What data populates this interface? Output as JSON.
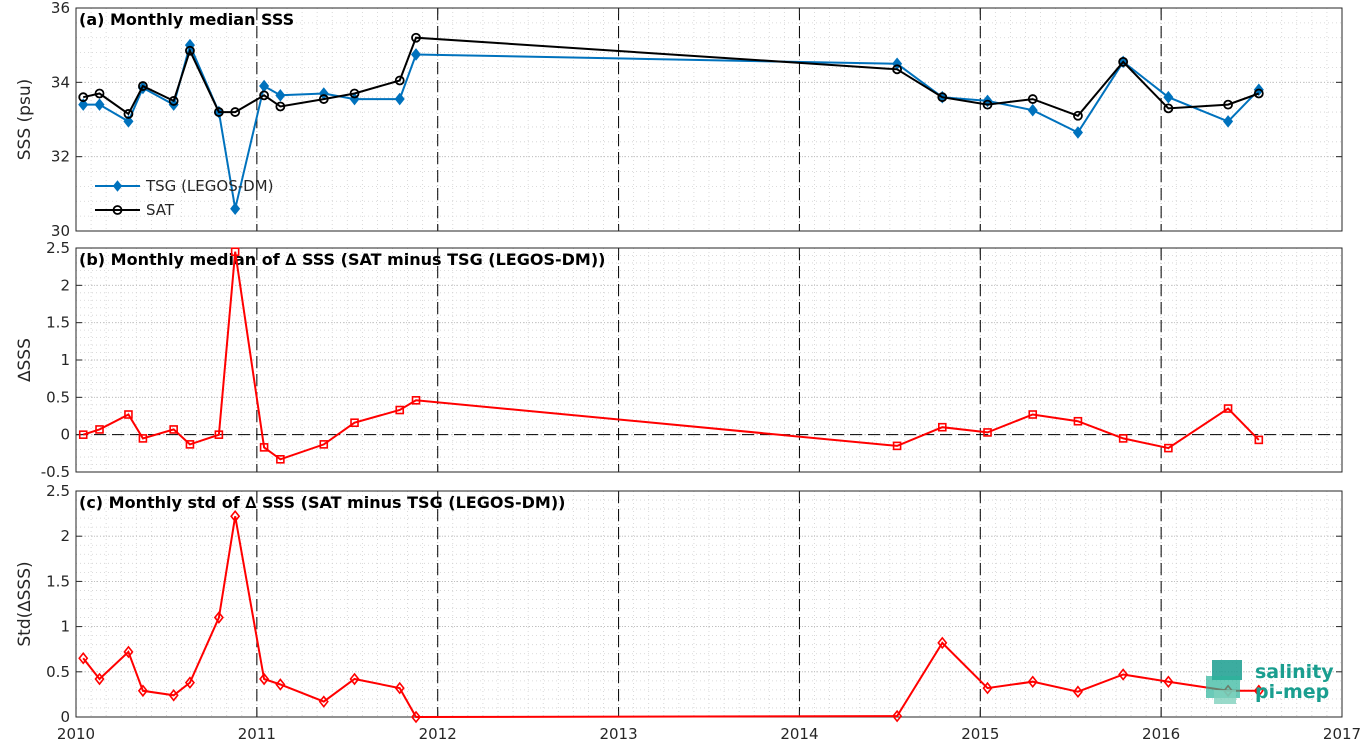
{
  "chart_data": [
    {
      "type": "line",
      "title": "(a) Monthly median SSS",
      "xlabel": "",
      "ylabel": "SSS (psu)",
      "xlim": [
        2010,
        2017
      ],
      "ylim": [
        30,
        36
      ],
      "yticks": [
        30,
        32,
        34,
        36
      ],
      "legend": "bottom-left",
      "grid": true,
      "series": [
        {
          "name": "TSG (LEGOS-DM)",
          "color": "#0072BD",
          "marker": "diamond",
          "x": [
            2010.04,
            2010.13,
            2010.29,
            2010.37,
            2010.54,
            2010.63,
            2010.79,
            2010.88,
            2011.04,
            2011.13,
            2011.37,
            2011.54,
            2011.79,
            2011.88,
            2014.54,
            2014.79,
            2015.04,
            2015.29,
            2015.54,
            2015.79,
            2016.04,
            2016.37,
            2016.54
          ],
          "y": [
            33.4,
            33.4,
            32.95,
            33.85,
            33.4,
            35.0,
            33.2,
            30.6,
            33.9,
            33.65,
            33.7,
            33.55,
            33.55,
            34.75,
            34.5,
            33.6,
            33.5,
            33.25,
            32.65,
            34.55,
            33.6,
            32.95,
            33.8
          ]
        },
        {
          "name": "SAT",
          "color": "#000000",
          "marker": "circle",
          "x": [
            2010.04,
            2010.13,
            2010.29,
            2010.37,
            2010.54,
            2010.63,
            2010.79,
            2010.88,
            2011.04,
            2011.13,
            2011.37,
            2011.54,
            2011.79,
            2011.88,
            2014.54,
            2014.79,
            2015.04,
            2015.29,
            2015.54,
            2015.79,
            2016.04,
            2016.37,
            2016.54
          ],
          "y": [
            33.6,
            33.7,
            33.15,
            33.9,
            33.5,
            34.85,
            33.2,
            33.2,
            33.65,
            33.35,
            33.55,
            33.7,
            34.05,
            35.2,
            34.35,
            33.6,
            33.4,
            33.55,
            33.1,
            34.55,
            33.3,
            33.4,
            33.7
          ]
        }
      ]
    },
    {
      "type": "line",
      "title": "(b) Monthly median of ∆ SSS (SAT minus TSG (LEGOS-DM))",
      "xlabel": "",
      "ylabel": "∆SSS",
      "xlim": [
        2010,
        2017
      ],
      "ylim": [
        -0.5,
        2.5
      ],
      "yticks": [
        -0.5,
        0,
        0.5,
        1,
        1.5,
        2,
        2.5
      ],
      "grid": true,
      "zero_line": true,
      "series": [
        {
          "color": "#FF0000",
          "marker": "square",
          "x": [
            2010.04,
            2010.13,
            2010.29,
            2010.37,
            2010.54,
            2010.63,
            2010.79,
            2010.88,
            2011.04,
            2011.13,
            2011.37,
            2011.54,
            2011.79,
            2011.88,
            2014.54,
            2014.79,
            2015.04,
            2015.29,
            2015.54,
            2015.79,
            2016.04,
            2016.37,
            2016.54
          ],
          "y": [
            0.0,
            0.07,
            0.27,
            -0.05,
            0.07,
            -0.13,
            0.0,
            2.45,
            -0.17,
            -0.33,
            -0.13,
            0.16,
            0.33,
            0.46,
            -0.15,
            0.1,
            0.03,
            0.27,
            0.18,
            -0.05,
            -0.18,
            0.35,
            -0.07
          ]
        }
      ]
    },
    {
      "type": "line",
      "title": "(c) Monthly std of ∆ SSS (SAT minus TSG (LEGOS-DM))",
      "xlabel": "",
      "ylabel": "Std(∆SSS)",
      "xlim": [
        2010,
        2017
      ],
      "ylim": [
        0,
        2.5
      ],
      "yticks": [
        0,
        0.5,
        1,
        1.5,
        2,
        2.5
      ],
      "xticks": [
        2010,
        2011,
        2012,
        2013,
        2014,
        2015,
        2016,
        2017
      ],
      "grid": true,
      "series": [
        {
          "color": "#FF0000",
          "marker": "diamond",
          "x": [
            2010.04,
            2010.13,
            2010.29,
            2010.37,
            2010.54,
            2010.63,
            2010.79,
            2010.88,
            2011.04,
            2011.13,
            2011.37,
            2011.54,
            2011.79,
            2011.88,
            2014.54,
            2014.79,
            2015.04,
            2015.29,
            2015.54,
            2015.79,
            2016.04,
            2016.37,
            2016.54
          ],
          "y": [
            0.65,
            0.42,
            0.72,
            0.29,
            0.24,
            0.38,
            1.1,
            2.22,
            0.42,
            0.36,
            0.17,
            0.42,
            0.32,
            0.0,
            0.01,
            0.82,
            0.32,
            0.39,
            0.28,
            0.47,
            0.39,
            0.29,
            0.29
          ]
        }
      ]
    }
  ],
  "xticks": [
    "2010",
    "2011",
    "2012",
    "2013",
    "2014",
    "2015",
    "2016",
    "2017"
  ],
  "year_lines": [
    2011,
    2012,
    2013,
    2014,
    2015,
    2016
  ],
  "logo": {
    "line1": "salinity",
    "line2": "pi-mep",
    "color": "#1a9e8f"
  }
}
